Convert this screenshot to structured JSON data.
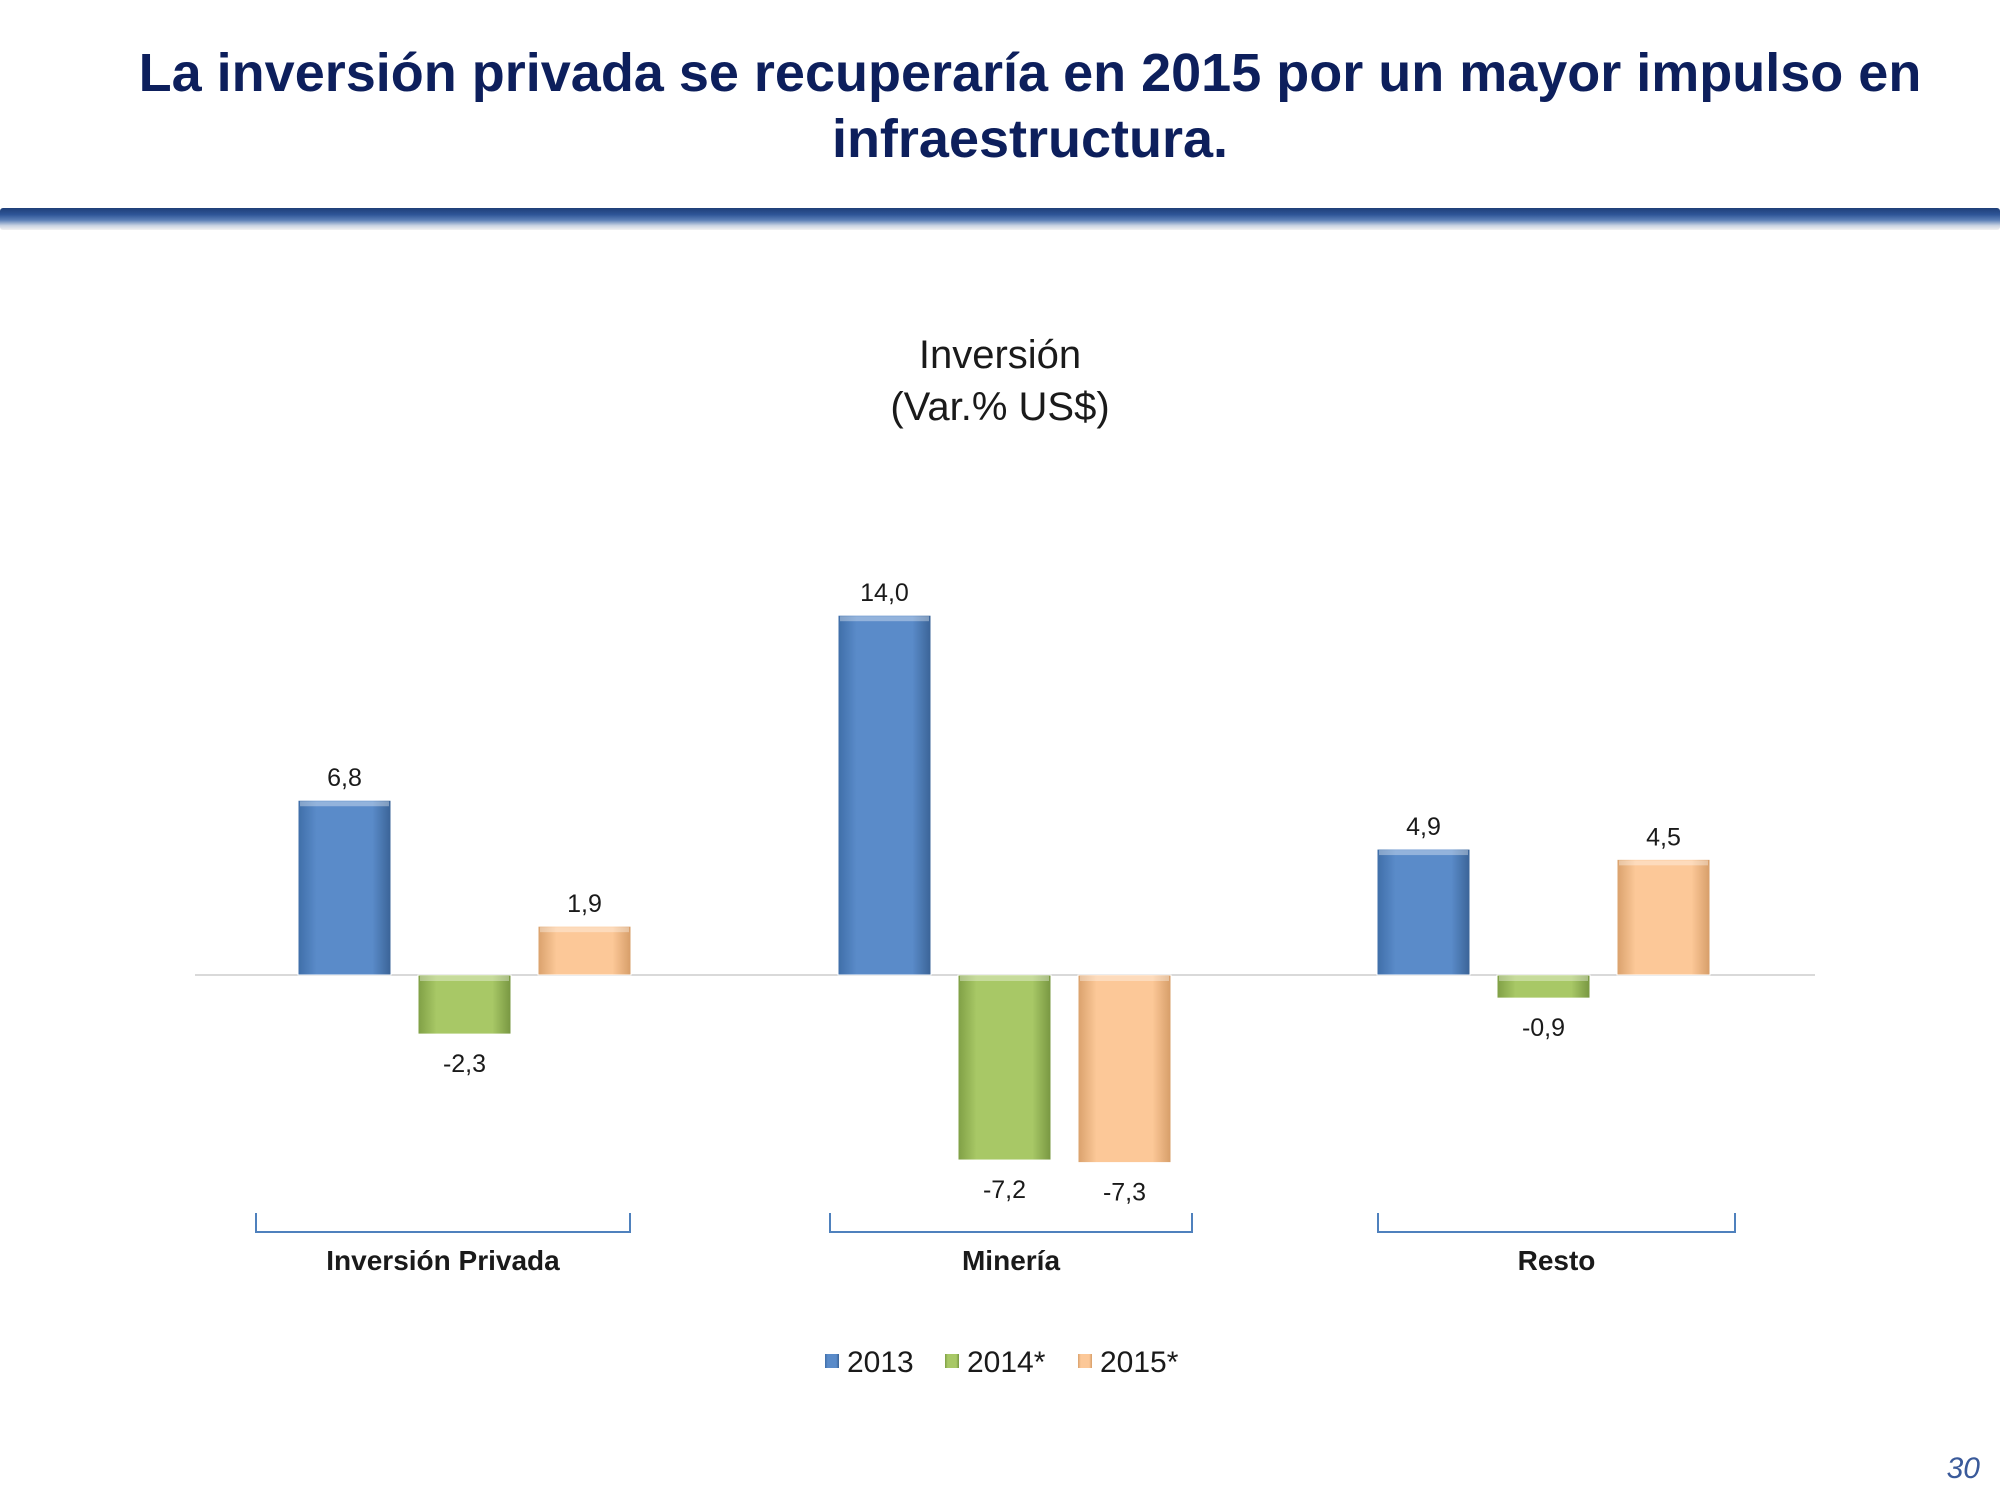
{
  "slide": {
    "title": "La inversión privada se recuperaría en 2015 por un mayor impulso en infraestructura.",
    "page_number": "30"
  },
  "chart_data": {
    "type": "bar",
    "title": "Inversión",
    "subtitle": "(Var.% US$)",
    "categories": [
      "Inversión Privada",
      "Minería",
      "Resto"
    ],
    "series": [
      {
        "name": "2013",
        "values": [
          6.8,
          14.0,
          4.9
        ],
        "labels": [
          "6,8",
          "14,0",
          "4,9"
        ],
        "color": "#4f81bd"
      },
      {
        "name": "2014*",
        "values": [
          -2.3,
          -7.2,
          -0.9
        ],
        "labels": [
          "-2,3",
          "-7,2",
          "-0,9"
        ],
        "color": "#9bbb59"
      },
      {
        "name": "2015*",
        "values": [
          1.9,
          -7.3,
          4.5
        ],
        "labels": [
          "1,9",
          "-7,3",
          "4,5"
        ],
        "color": "#fac090"
      }
    ],
    "xlabel": "",
    "ylabel": "",
    "ylim": [
      -7.3,
      14.0
    ],
    "grid": false,
    "legend_position": "bottom",
    "axis_color": "#d9d9d9",
    "bracket_color": "#4f81bd"
  }
}
